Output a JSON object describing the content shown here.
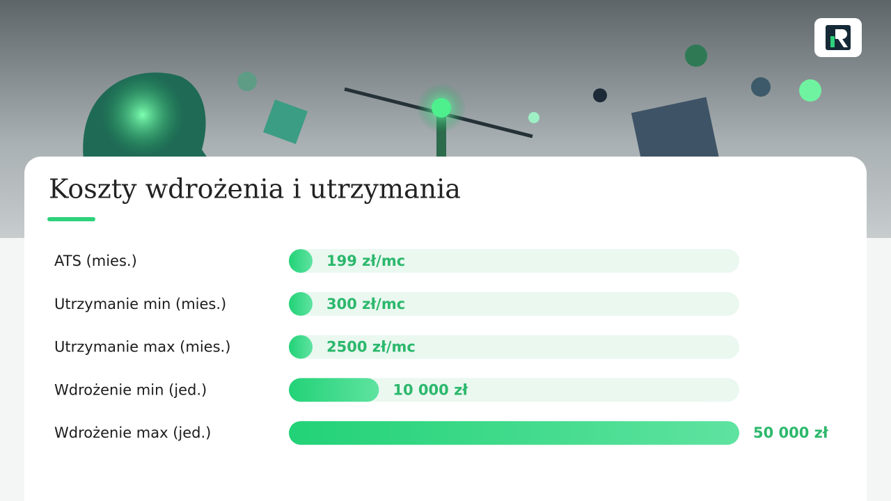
{
  "chart_data": {
    "type": "bar",
    "orientation": "horizontal",
    "title": "Koszty wdrożenia i utrzymania",
    "categories": [
      "ATS (mies.)",
      "Utrzymanie min (mies.)",
      "Utrzymanie max (mies.)",
      "Wdrożenie min (jed.)",
      "Wdrożenie max (jed.)"
    ],
    "values": [
      199,
      300,
      2500,
      10000,
      50000
    ],
    "value_labels": [
      "199 zł/mc",
      "300 zł/mc",
      "2500 zł/mc",
      "10 000 zł",
      "50 000 zł"
    ],
    "xlim": [
      0,
      50000
    ],
    "color": "#2dd27a"
  }
}
